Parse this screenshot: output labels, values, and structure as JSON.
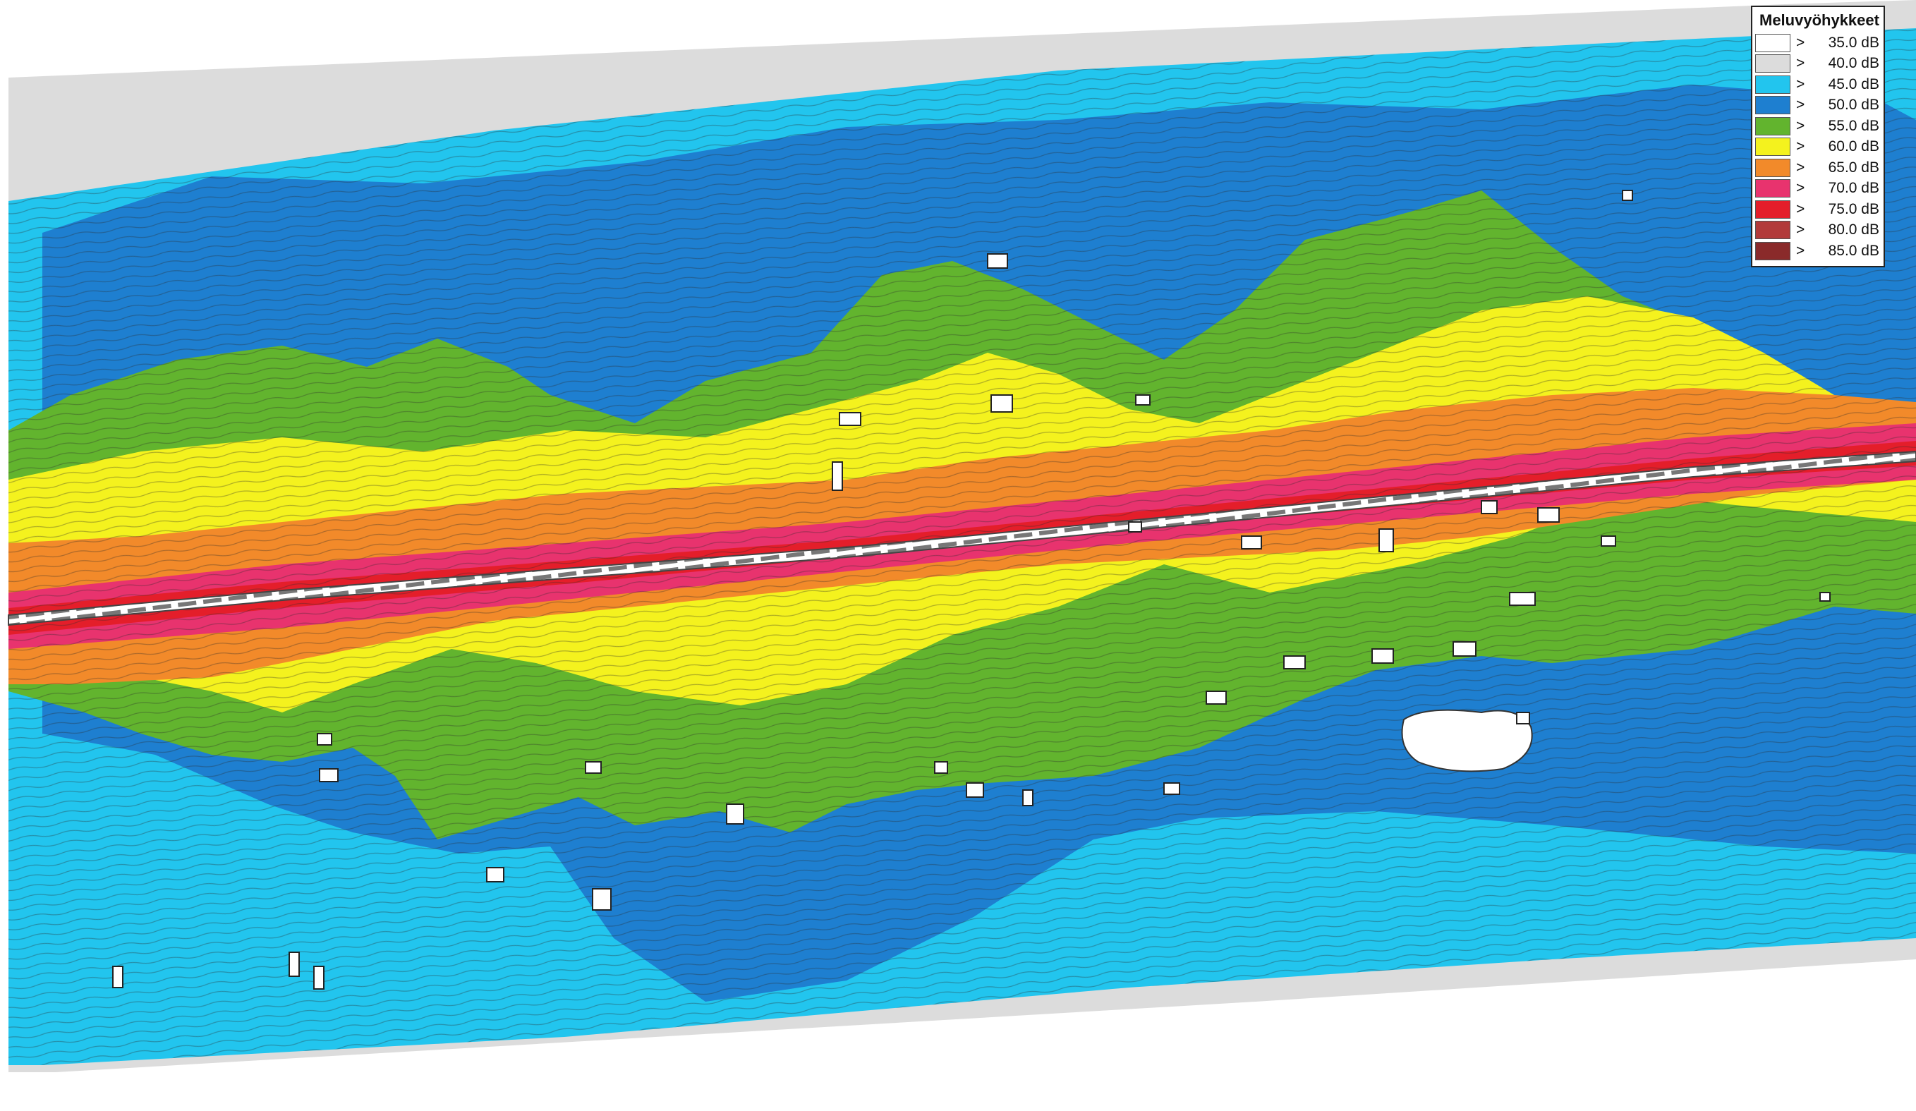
{
  "legend": {
    "title": "Meluvyöhykkeet",
    "items": [
      {
        "symbol": ">",
        "label": "35.0 dB",
        "color": "#ffffff"
      },
      {
        "symbol": ">",
        "label": "40.0 dB",
        "color": "#dcdcdc"
      },
      {
        "symbol": ">",
        "label": "45.0 dB",
        "color": "#22c5ee"
      },
      {
        "symbol": ">",
        "label": "50.0 dB",
        "color": "#1e7fd0"
      },
      {
        "symbol": ">",
        "label": "55.0 dB",
        "color": "#62b42e"
      },
      {
        "symbol": ">",
        "label": "60.0 dB",
        "color": "#f4f21e"
      },
      {
        "symbol": ">",
        "label": "65.0 dB",
        "color": "#f28a2a"
      },
      {
        "symbol": ">",
        "label": "70.0 dB",
        "color": "#e8336e"
      },
      {
        "symbol": ">",
        "label": "75.0 dB",
        "color": "#e41e2a"
      },
      {
        "symbol": ">",
        "label": "80.0 dB",
        "color": "#b23a3a"
      },
      {
        "symbol": ">",
        "label": "85.0 dB",
        "color": "#8a2a2a"
      }
    ]
  },
  "map": {
    "type": "noise-zone-map",
    "feature": "road corridor with noise contour bands",
    "colors": {
      "background": "#ffffff",
      "zone_40": "#dcdcdc",
      "zone_45": "#22c5ee",
      "zone_50": "#1e7fd0",
      "zone_55": "#62b42e",
      "zone_60": "#f4f21e",
      "zone_65": "#f28a2a",
      "zone_70": "#e8336e",
      "zone_75": "#e41e2a",
      "road": "#9a2d4a"
    }
  }
}
